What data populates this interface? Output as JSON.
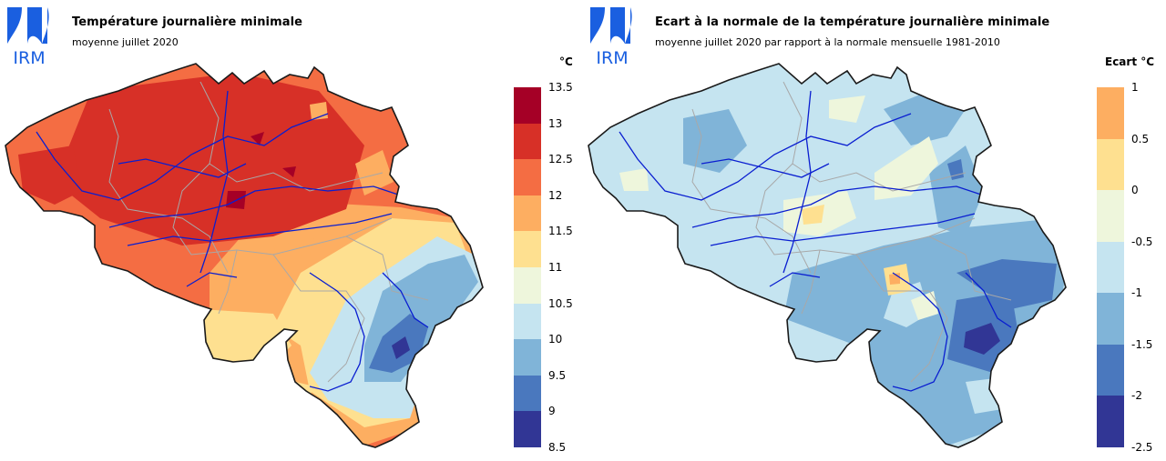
{
  "logo": {
    "text": "IRM",
    "color": "#1a5fe0"
  },
  "panels": [
    {
      "title": "Température journalière minimale",
      "subtitle": "moyenne juillet 2020",
      "legend_unit": "°C",
      "legend_ticks": [
        "13.5",
        "13",
        "12.5",
        "12",
        "11.5",
        "11",
        "10.5",
        "10",
        "9.5",
        "9",
        "8.5"
      ],
      "legend_colors": [
        "#a50026",
        "#d73027",
        "#f46d43",
        "#fdae61",
        "#fee090",
        "#eef6dc",
        "#c5e4f0",
        "#80b4d8",
        "#4a78be",
        "#313695"
      ]
    },
    {
      "title": "Ecart à la normale de la température journalière minimale",
      "subtitle": "moyenne juillet 2020 par rapport à la normale mensuelle 1981-2010",
      "legend_unit": "Ecart °C",
      "legend_ticks": [
        "1",
        "0.5",
        "0",
        "-0.5",
        "-1",
        "-1.5",
        "-2",
        "-2.5"
      ],
      "legend_colors": [
        "#fdae61",
        "#fee090",
        "#eef6dc",
        "#c5e4f0",
        "#80b4d8",
        "#4a78be",
        "#313695"
      ]
    }
  ],
  "colors": {
    "border": "#1a1a1a",
    "rivers": "#0a1ed0",
    "provinces": "#a8a8a8"
  }
}
